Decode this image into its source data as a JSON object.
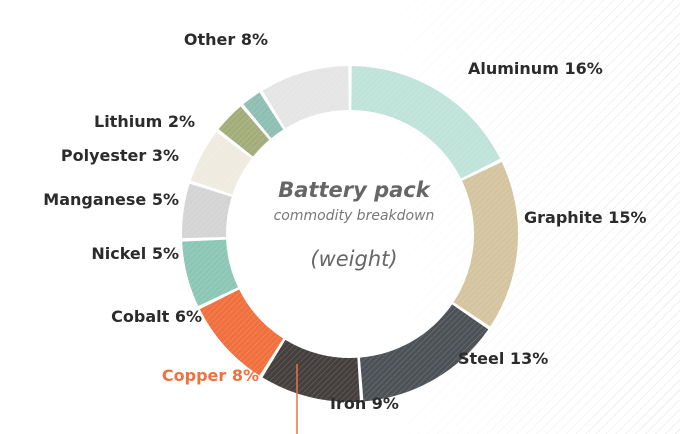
{
  "chart_data": {
    "type": "pie",
    "title": "Battery pack",
    "subtitle": "commodity breakdown",
    "note": "(weight)",
    "highlight_color": "#f0703e",
    "slices": [
      {
        "label": "Aluminum",
        "value": 16,
        "display": "Aluminum 16%",
        "color": "#bfe3d9"
      },
      {
        "label": "Graphite",
        "value": 15,
        "display": "Graphite 15%",
        "color": "#d4c5a0"
      },
      {
        "label": "Steel",
        "value": 13,
        "display": "Steel 13%",
        "color": "#4d5257"
      },
      {
        "label": "Iron",
        "value": 9,
        "display": "Iron 9%",
        "color": "#45403d"
      },
      {
        "label": "Copper",
        "value": 8,
        "display": "Copper 8%",
        "color": "#f0703e",
        "highlight": true
      },
      {
        "label": "Cobalt",
        "value": 6,
        "display": "Cobalt 6%",
        "color": "#8cc7b6"
      },
      {
        "label": "Nickel",
        "value": 5,
        "display": "Nickel 5%",
        "color": "#d4d4d4"
      },
      {
        "label": "Manganese",
        "value": 5,
        "display": "Manganese 5%",
        "color": "#f0ebe0"
      },
      {
        "label": "Polyester",
        "value": 3,
        "display": "Polyester 3%",
        "color": "#a3ad7a"
      },
      {
        "label": "Lithium",
        "value": 2,
        "display": "Lithium 2%",
        "color": "#8ebfb3"
      },
      {
        "label": "Other",
        "value": 8,
        "display": "Other 8%",
        "color": "#e5e5e5"
      }
    ]
  }
}
